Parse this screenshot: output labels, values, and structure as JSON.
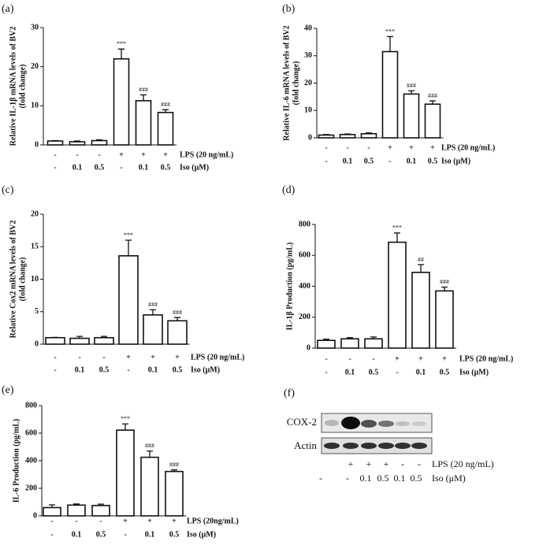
{
  "chart_data": [
    {
      "type": "bar",
      "panel": "(a)",
      "ylabel": [
        "Relative IL-1β mRNA levels of BV2",
        "(fold change)"
      ],
      "categories": [
        null,
        null,
        null,
        null,
        null,
        null
      ],
      "values": [
        1,
        0.8,
        1.1,
        22,
        11.3,
        8.3
      ],
      "errors": [
        0.1,
        0.2,
        0.2,
        2.5,
        1.5,
        0.7
      ],
      "annotations": [
        null,
        null,
        null,
        "***",
        "###",
        "###"
      ],
      "rows": [
        {
          "label": "LPS (20 ng/mL)",
          "items": [
            "-",
            "-",
            "-",
            "+",
            "+",
            "+"
          ]
        },
        {
          "label": "Iso (μM)",
          "items": [
            "-",
            "0.1",
            "0.5",
            "-",
            "0.1",
            "0.5"
          ]
        }
      ],
      "ylim": [
        0,
        30
      ],
      "yticks": [
        0,
        10,
        20,
        30
      ],
      "color": "#ffffff"
    },
    {
      "type": "bar",
      "panel": "(b)",
      "ylabel": [
        "Relative IL-6 mRNA levels of BV2",
        "(fold change)"
      ],
      "categories": [
        null,
        null,
        null,
        null,
        null,
        null
      ],
      "values": [
        1,
        1.2,
        1.5,
        31.5,
        16,
        12.3
      ],
      "errors": [
        0.2,
        0.2,
        0.3,
        5.5,
        1.2,
        1.2
      ],
      "annotations": [
        null,
        null,
        null,
        "***",
        "###",
        "###"
      ],
      "rows": [
        {
          "label": "LPS (20 ng/mL)",
          "items": [
            "-",
            "-",
            "-",
            "+",
            "+",
            "+"
          ]
        },
        {
          "label": "Iso (μM)",
          "items": [
            "-",
            "0.1",
            "0.5",
            "-",
            "0.1",
            "0.5"
          ]
        }
      ],
      "ylim": [
        0,
        40
      ],
      "yticks": [
        0,
        10,
        20,
        30,
        40
      ],
      "color": "#ffffff"
    },
    {
      "type": "bar",
      "panel": "(c)",
      "ylabel": [
        "Relative Cox2 mRNA levels of BV2",
        "(fold change)"
      ],
      "categories": [
        null,
        null,
        null,
        null,
        null,
        null
      ],
      "values": [
        1,
        0.9,
        1.0,
        13.6,
        4.5,
        3.6
      ],
      "errors": [
        0.05,
        0.3,
        0.2,
        2.4,
        0.8,
        0.5
      ],
      "annotations": [
        null,
        null,
        null,
        "***",
        "###",
        "###"
      ],
      "rows": [
        {
          "label": "LPS (20 ng/mL)",
          "items": [
            "-",
            "-",
            "-",
            "+",
            "+",
            "+"
          ]
        },
        {
          "label": "Iso (μM)",
          "items": [
            "-",
            "0.1",
            "0.5",
            "-",
            "0.1",
            "0.5"
          ]
        }
      ],
      "ylim": [
        0,
        20
      ],
      "yticks": [
        0,
        5,
        10,
        15,
        20
      ],
      "color": "#ffffff"
    },
    {
      "type": "bar",
      "panel": "(d)",
      "ylabel": [
        "IL-1β Production (pg/mL)"
      ],
      "categories": [
        null,
        null,
        null,
        null,
        null,
        null
      ],
      "values": [
        50,
        60,
        60,
        685,
        490,
        370
      ],
      "errors": [
        8,
        8,
        12,
        60,
        50,
        25
      ],
      "annotations": [
        null,
        null,
        null,
        "***",
        "##",
        "###"
      ],
      "rows": [
        {
          "label": "LPS (20 ng/mL)",
          "items": [
            "-",
            "-",
            "-",
            "+",
            "+",
            "+"
          ]
        },
        {
          "label": "Iso (μM)",
          "items": [
            "-",
            "0.1",
            "0.5",
            "-",
            "0.1",
            "0.5"
          ]
        }
      ],
      "ylim": [
        0,
        800
      ],
      "yticks": [
        0,
        200,
        400,
        600,
        800
      ],
      "color": "#ffffff"
    },
    {
      "type": "bar",
      "panel": "(e)",
      "ylabel": [
        "IL-6 Production (pg/mL)"
      ],
      "categories": [
        null,
        null,
        null,
        null,
        null,
        null
      ],
      "values": [
        60,
        78,
        75,
        622,
        425,
        322
      ],
      "errors": [
        20,
        8,
        10,
        45,
        45,
        12
      ],
      "annotations": [
        null,
        null,
        null,
        "***",
        "###",
        "###"
      ],
      "rows": [
        {
          "label": "LPS (20ng/mL)",
          "items": [
            "-",
            "-",
            "-",
            "+",
            "+",
            "+"
          ]
        },
        {
          "label": "Iso (μM)",
          "items": [
            "-",
            "0.1",
            "0.5",
            "-",
            "0.1",
            "0.5"
          ]
        }
      ],
      "ylim": [
        0,
        800
      ],
      "yticks": [
        0,
        200,
        400,
        600,
        800
      ],
      "color": "#ffffff"
    }
  ],
  "blot": {
    "panel": "(f)",
    "bands": [
      "COX-2",
      "Actin"
    ],
    "rows": [
      {
        "label": "LPS (20 ng/mL)",
        "items": [
          null,
          "+",
          "+",
          "+",
          "-",
          "-"
        ]
      },
      {
        "label": "Iso (μM)",
        "items": [
          "-",
          "-",
          "0.1",
          "0.5",
          "0.1",
          "0.5"
        ]
      }
    ]
  }
}
